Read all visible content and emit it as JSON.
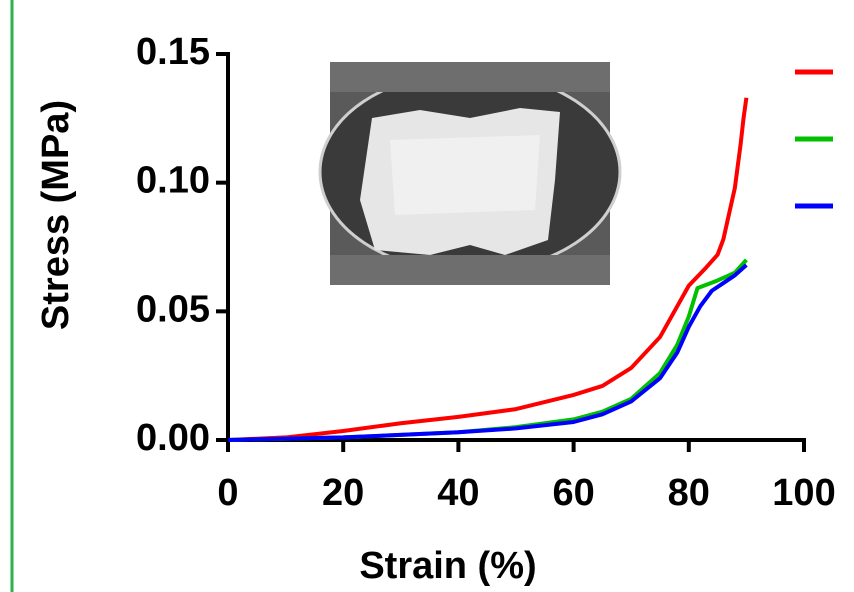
{
  "chart_data": {
    "type": "line",
    "xlabel": "Strain (%)",
    "ylabel": "Stress (MPa)",
    "xlim": [
      0,
      100
    ],
    "xticks": [
      0,
      20,
      40,
      60,
      80,
      100
    ],
    "ylim": [
      0,
      0.15
    ],
    "yticks": [
      {
        "value": 0,
        "label": "0.00"
      },
      {
        "value": 0.05,
        "label": "0.05"
      },
      {
        "value": 0.1,
        "label": "0.10"
      },
      {
        "value": 0.15,
        "label": "0.15"
      }
    ],
    "series": [
      {
        "color": "#ff0000",
        "x": [
          0,
          10,
          20,
          30,
          40,
          50,
          60,
          65,
          70,
          75,
          78,
          80,
          83,
          85,
          86,
          87,
          88,
          89,
          89.5,
          90
        ],
        "values": [
          0,
          0.001,
          0.0035,
          0.0065,
          0.009,
          0.012,
          0.0175,
          0.021,
          0.028,
          0.04,
          0.052,
          0.06,
          0.067,
          0.072,
          0.078,
          0.088,
          0.098,
          0.115,
          0.125,
          0.133
        ]
      },
      {
        "color": "#00c000",
        "x": [
          0,
          20,
          40,
          50,
          60,
          65,
          70,
          75,
          78,
          80,
          81.5,
          85,
          88,
          90
        ],
        "values": [
          0,
          0.001,
          0.003,
          0.005,
          0.008,
          0.011,
          0.016,
          0.026,
          0.037,
          0.048,
          0.059,
          0.062,
          0.065,
          0.07
        ]
      },
      {
        "color": "#0000ff",
        "x": [
          0,
          20,
          40,
          50,
          60,
          65,
          70,
          75,
          78,
          80,
          82,
          84,
          86,
          88,
          90
        ],
        "values": [
          0,
          0.001,
          0.003,
          0.0045,
          0.007,
          0.01,
          0.015,
          0.024,
          0.034,
          0.044,
          0.052,
          0.058,
          0.061,
          0.064,
          0.068
        ]
      }
    ]
  }
}
